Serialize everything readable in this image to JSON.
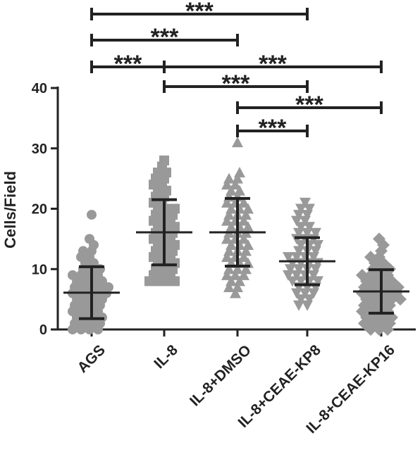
{
  "chart_data": {
    "type": "scatter",
    "ylabel": "Cells/Field",
    "ylim": [
      0,
      40
    ],
    "yticks": [
      "0",
      "10",
      "20",
      "30",
      "40"
    ],
    "categories": [
      "AGS",
      "IL-8",
      "IL-8+DMSO",
      "IL-8+CEAE-KP8",
      "IL-8+CEAE-KP16"
    ],
    "marker_shapes": [
      "circle",
      "square",
      "triangle-up",
      "triangle-down",
      "diamond"
    ],
    "colors": {
      "points": "#999999",
      "lines": "#222222"
    },
    "series": [
      {
        "mean": 6.1,
        "sd_low": 1.8,
        "sd_high": 10.4,
        "points": [
          19,
          15,
          14,
          13,
          13,
          12,
          12,
          11,
          11,
          10,
          10,
          10,
          9,
          9,
          9,
          9,
          8,
          8,
          8,
          8,
          7,
          7,
          7,
          7,
          7,
          6,
          6,
          6,
          6,
          6,
          5,
          5,
          5,
          5,
          4,
          4,
          4,
          4,
          3,
          3,
          3,
          3,
          2,
          2,
          2,
          2,
          1,
          1,
          1,
          1,
          0,
          0,
          0,
          0
        ]
      },
      {
        "mean": 16.1,
        "sd_low": 10.7,
        "sd_high": 21.5,
        "points": [
          28,
          27,
          26,
          26,
          25,
          25,
          24,
          24,
          23,
          23,
          22,
          22,
          21,
          21,
          20,
          20,
          20,
          19,
          19,
          19,
          18,
          18,
          18,
          17,
          17,
          17,
          16,
          16,
          16,
          15,
          15,
          15,
          14,
          14,
          14,
          13,
          13,
          13,
          12,
          12,
          12,
          11,
          11,
          11,
          10,
          10,
          10,
          9,
          9,
          9,
          8,
          8,
          8,
          8
        ]
      },
      {
        "mean": 16.1,
        "sd_low": 10.5,
        "sd_high": 21.7,
        "points": [
          31,
          26,
          25,
          25,
          24,
          24,
          23,
          23,
          22,
          22,
          21,
          21,
          21,
          20,
          20,
          20,
          19,
          19,
          19,
          18,
          18,
          18,
          17,
          17,
          17,
          16,
          16,
          16,
          15,
          15,
          15,
          14,
          14,
          14,
          13,
          13,
          13,
          12,
          12,
          12,
          11,
          11,
          11,
          10,
          10,
          10,
          9,
          9,
          9,
          8,
          8,
          7,
          7,
          6
        ]
      },
      {
        "mean": 11.3,
        "sd_low": 7.4,
        "sd_high": 15.2,
        "points": [
          21,
          20,
          20,
          19,
          19,
          18,
          18,
          17,
          17,
          16,
          16,
          16,
          15,
          15,
          15,
          14,
          14,
          14,
          13,
          13,
          13,
          12,
          12,
          12,
          12,
          11,
          11,
          11,
          11,
          10,
          10,
          10,
          10,
          9,
          9,
          9,
          9,
          8,
          8,
          8,
          8,
          7,
          7,
          7,
          6,
          6,
          6,
          5,
          5,
          4,
          4
        ]
      },
      {
        "mean": 6.3,
        "sd_low": 2.7,
        "sd_high": 9.9,
        "points": [
          15,
          14,
          13,
          12,
          12,
          11,
          11,
          10,
          10,
          10,
          9,
          9,
          9,
          9,
          8,
          8,
          8,
          8,
          7,
          7,
          7,
          7,
          7,
          6,
          6,
          6,
          6,
          6,
          5,
          5,
          5,
          5,
          5,
          4,
          4,
          4,
          4,
          3,
          3,
          3,
          3,
          2,
          2,
          2,
          2,
          1,
          1,
          1,
          1,
          0,
          0,
          0
        ]
      }
    ],
    "comparisons": [
      {
        "from": 0,
        "to": 3,
        "label": "***"
      },
      {
        "from": 0,
        "to": 2,
        "label": "***"
      },
      {
        "from": 0,
        "to": 1,
        "label": "***"
      },
      {
        "from": 1,
        "to": 4,
        "label": "***"
      },
      {
        "from": 1,
        "to": 3,
        "label": "***"
      },
      {
        "from": 2,
        "to": 4,
        "label": "***"
      },
      {
        "from": 2,
        "to": 3,
        "label": "***"
      }
    ]
  }
}
